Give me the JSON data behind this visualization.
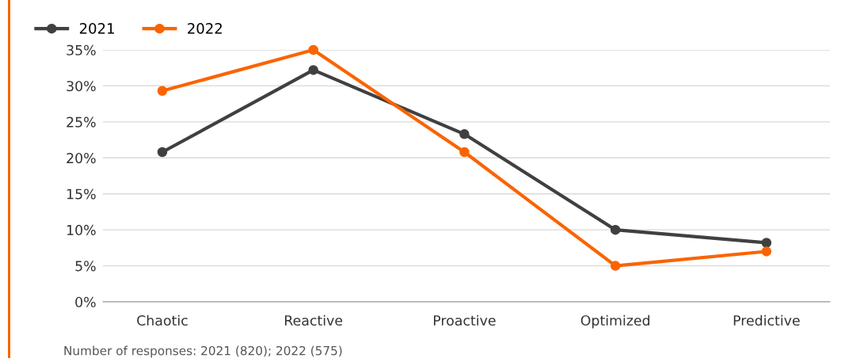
{
  "chart_data": {
    "type": "line",
    "categories": [
      "Chaotic",
      "Reactive",
      "Proactive",
      "Optimized",
      "Predictive"
    ],
    "series": [
      {
        "name": "2021",
        "color": "#404040",
        "values": [
          20.8,
          32.2,
          23.3,
          10.0,
          8.2
        ]
      },
      {
        "name": "2022",
        "color": "#fa6400",
        "values": [
          29.3,
          35.0,
          20.8,
          5.0,
          7.0
        ]
      }
    ],
    "ylim": [
      0,
      35
    ],
    "yticks": [
      {
        "value": 0,
        "label": "0%"
      },
      {
        "value": 5,
        "label": "5%"
      },
      {
        "value": 10,
        "label": "10%"
      },
      {
        "value": 15,
        "label": "15%"
      },
      {
        "value": 20,
        "label": "20%"
      },
      {
        "value": 25,
        "label": "25%"
      },
      {
        "value": 30,
        "label": "30%"
      },
      {
        "value": 35,
        "label": "35%"
      }
    ],
    "grid": "y",
    "legend": "top left",
    "marker": "circle",
    "line_style": "solid",
    "annotations": [
      "Number of responses: 2021 (820); 2022 (575)"
    ]
  }
}
